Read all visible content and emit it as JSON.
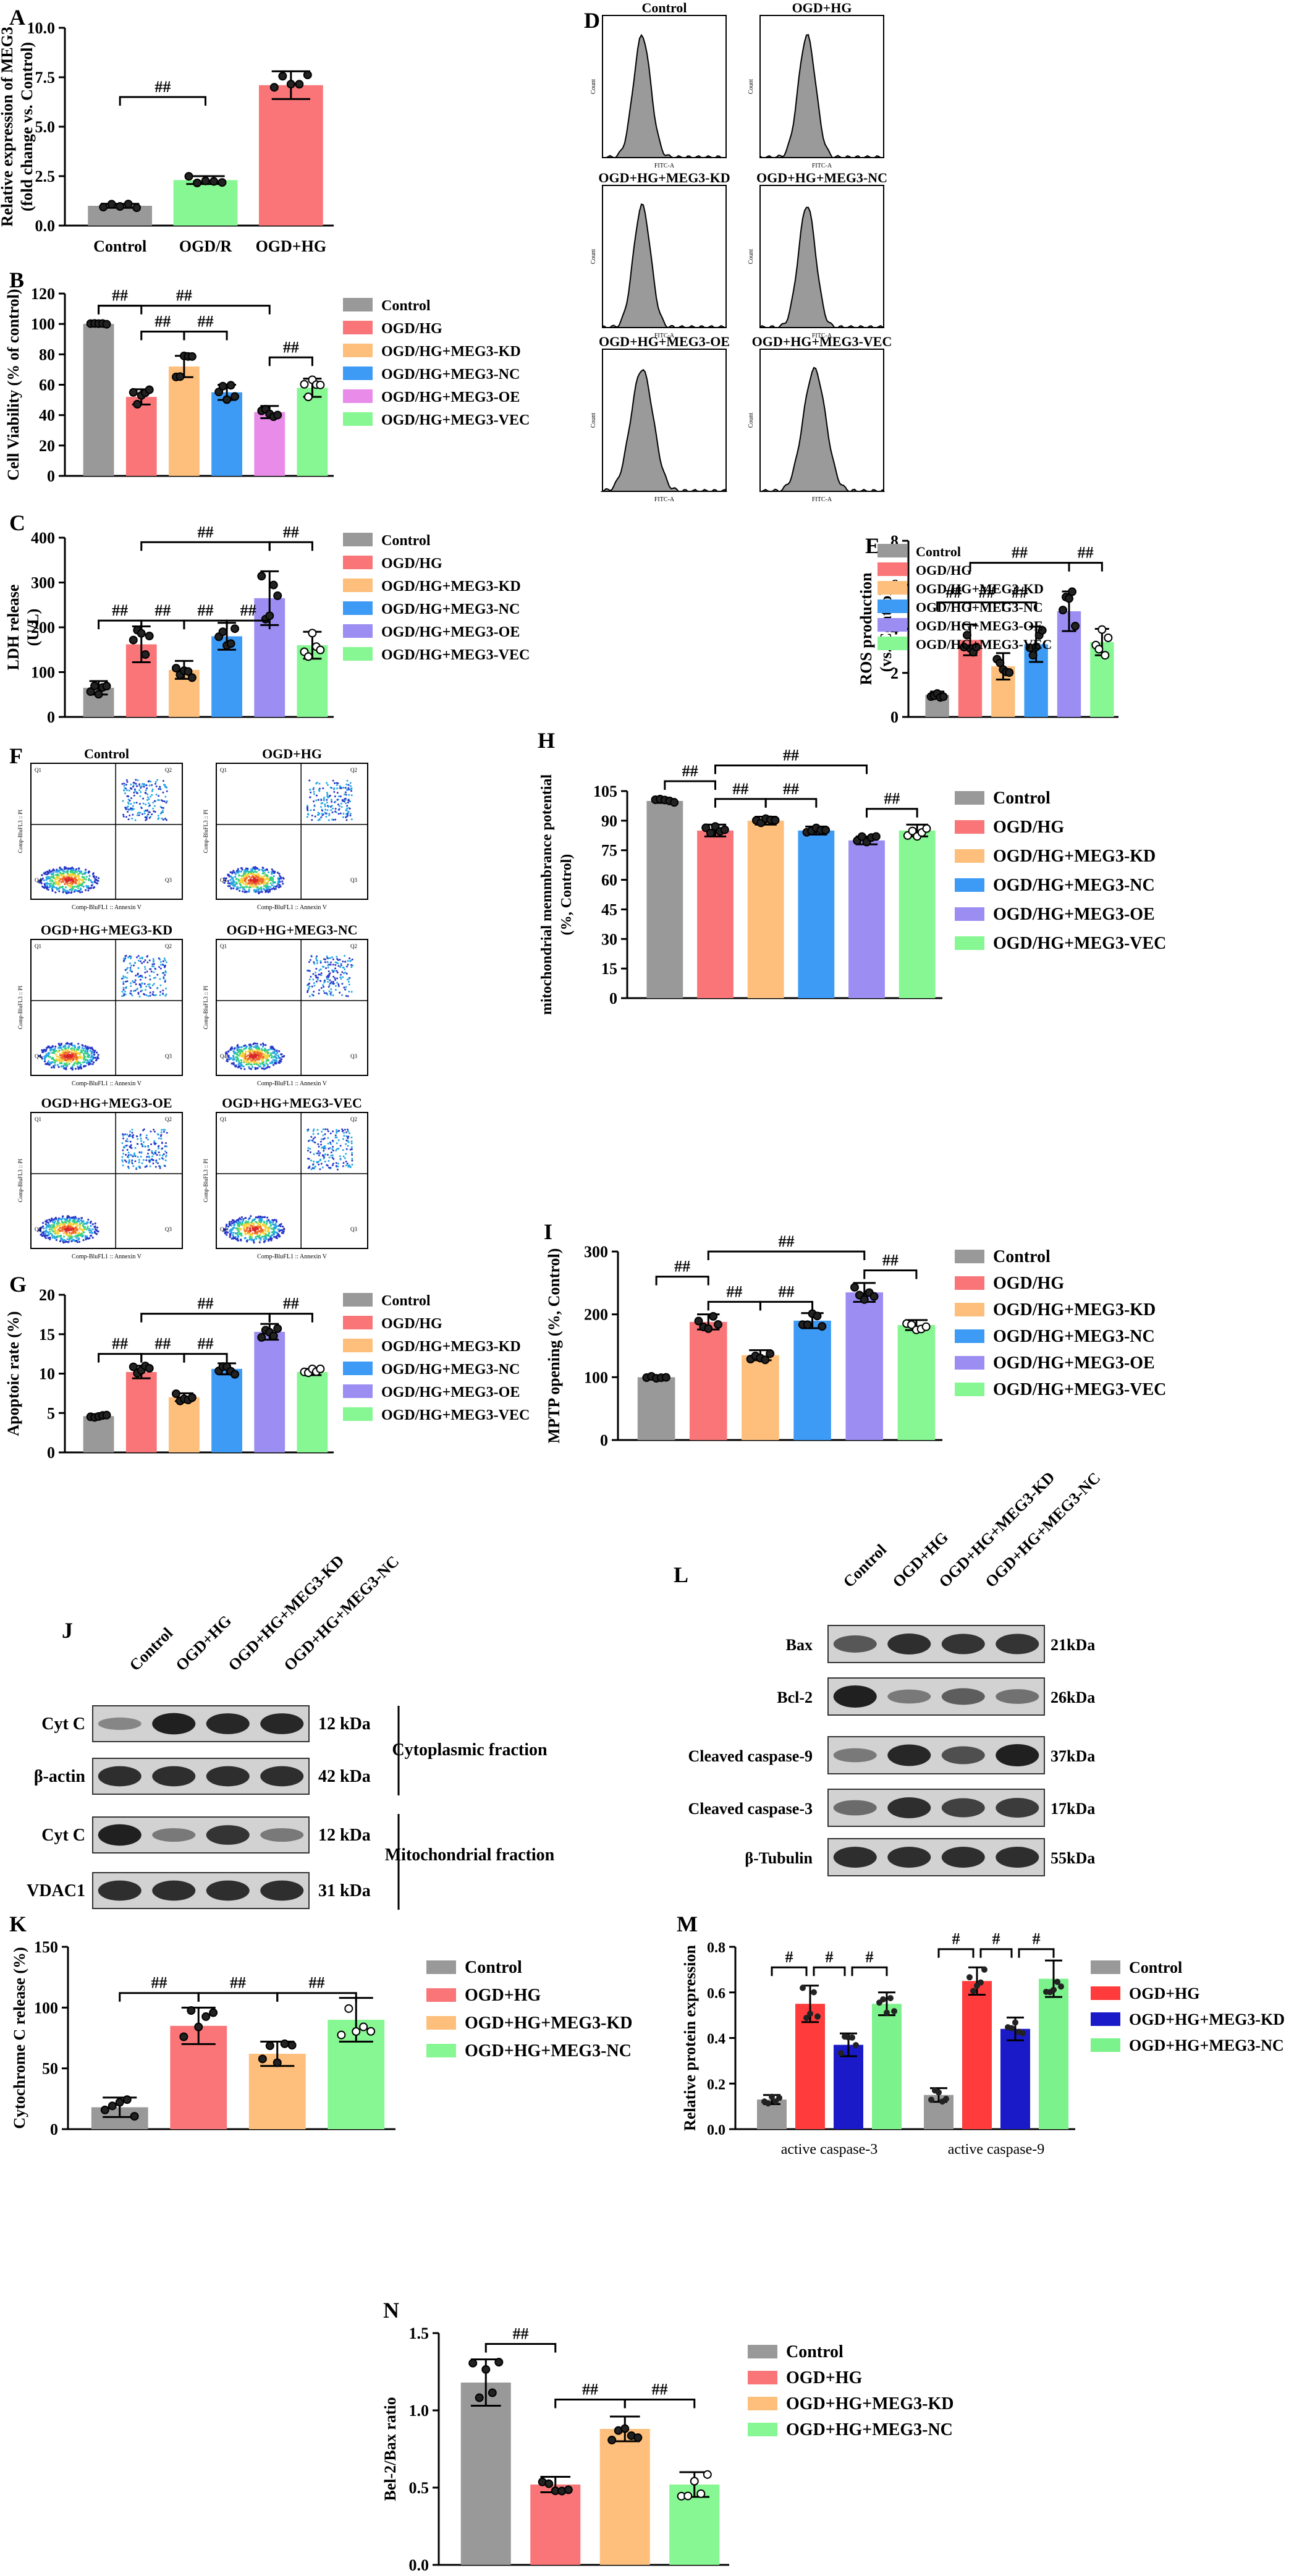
{
  "colors": {
    "gray": "#999999",
    "red": "#F97578",
    "orange": "#FDBF7B",
    "blue": "#3D9BF5",
    "purple": "#9B8DF2",
    "pink": "#E98BE8",
    "green": "#86F792",
    "red2": "#FF3B3B",
    "navy": "#1A1AC8",
    "lime": "#7CF28C"
  },
  "panels": {
    "A": {
      "letter": "A",
      "ylabel": [
        "Relative expression of MEG3",
        "(fold change vs. Control)"
      ],
      "ylim": [
        0,
        10
      ],
      "yticks": [
        "0.0",
        "2.5",
        "5.0",
        "7.5",
        "10.0"
      ],
      "categories": [
        "Control",
        "OGD/R",
        "OGD+HG"
      ],
      "values": [
        1.0,
        2.3,
        7.1
      ],
      "errors": [
        0.1,
        0.2,
        0.7
      ],
      "sig": [
        "##",
        "##"
      ],
      "colors": [
        "gray",
        "green",
        "red"
      ]
    },
    "B": {
      "letter": "B",
      "ylabel": [
        "Cell Viability (% of control)"
      ],
      "ylim": [
        0,
        120
      ],
      "yticks": [
        "0",
        "20",
        "40",
        "60",
        "80",
        "100",
        "120"
      ],
      "values": [
        100,
        52,
        72,
        55,
        42,
        58
      ],
      "errors": [
        0,
        5,
        7,
        5,
        4,
        6
      ],
      "sig": [
        "##",
        "##",
        "##",
        "##",
        "##"
      ],
      "colors": [
        "gray",
        "red",
        "orange",
        "blue",
        "pink",
        "green"
      ],
      "legend": [
        "Control",
        "OGD/HG",
        "OGD/HG+MEG3-KD",
        "OGD/HG+MEG3-NC",
        "OGD/HG+MEG3-OE",
        "OGD/HG+MEG3-VEC"
      ]
    },
    "C": {
      "letter": "C",
      "ylabel": [
        "LDH release",
        "(U/L)"
      ],
      "ylim": [
        0,
        400
      ],
      "yticks": [
        "0",
        "100",
        "200",
        "300",
        "400"
      ],
      "values": [
        65,
        162,
        105,
        180,
        265,
        160
      ],
      "errors": [
        15,
        40,
        20,
        30,
        60,
        30
      ],
      "sig": [
        "##",
        "##",
        "##",
        "##",
        "##",
        "##"
      ],
      "colors": [
        "gray",
        "red",
        "orange",
        "blue",
        "purple",
        "green"
      ],
      "legend": [
        "Control",
        "OGD/HG",
        "OGD/HG+MEG3-KD",
        "OGD/HG+MEG3-NC",
        "OGD/HG+MEG3-OE",
        "OGD/HG+MEG3-VEC"
      ]
    },
    "E": {
      "letter": "E",
      "ylabel": [
        "ROS production",
        "(vs. Control)"
      ],
      "ylim": [
        0,
        8
      ],
      "yticks": [
        "0",
        "2",
        "4",
        "6",
        "8"
      ],
      "values": [
        1.0,
        3.5,
        2.3,
        3.3,
        4.8,
        3.4
      ],
      "errors": [
        0.15,
        0.7,
        0.6,
        0.8,
        0.9,
        0.6
      ],
      "sig": [
        "##",
        "##",
        "##",
        "##",
        "##"
      ],
      "colors": [
        "gray",
        "red",
        "orange",
        "blue",
        "purple",
        "green"
      ],
      "legend": [
        "Control",
        "OGD/HG",
        "OGD/HG+MEG3-KD",
        "OGD/HG+MEG3-NC",
        "OGD/HG+MEG3-OE",
        "OGD/HG+MEG3-VEC"
      ]
    },
    "G": {
      "letter": "G",
      "ylabel": [
        "Apoptoic rate (%)"
      ],
      "ylim": [
        0,
        20
      ],
      "yticks": [
        "0",
        "5",
        "10",
        "15",
        "20"
      ],
      "values": [
        4.6,
        10.2,
        7.0,
        10.6,
        15.3,
        10.2
      ],
      "errors": [
        0.2,
        0.8,
        0.5,
        0.7,
        1.0,
        0.4
      ],
      "sig": [
        "##",
        "##",
        "##",
        "##",
        "##"
      ],
      "colors": [
        "gray",
        "red",
        "orange",
        "blue",
        "purple",
        "green"
      ],
      "legend": [
        "Control",
        "OGD/HG",
        "OGD/HG+MEG3-KD",
        "OGD/HG+MEG3-NC",
        "OGD/HG+MEG3-OE",
        "OGD/HG+MEG3-VEC"
      ]
    },
    "H": {
      "letter": "H",
      "ylabel": [
        "mitochondrial memmbrance potential",
        "(%, Control)"
      ],
      "ylim": [
        0,
        105
      ],
      "yticks": [
        "0",
        "15",
        "30",
        "45",
        "60",
        "75",
        "90",
        "105"
      ],
      "values": [
        100,
        85,
        90,
        85,
        80,
        85
      ],
      "errors": [
        1,
        3,
        2,
        2,
        2,
        3
      ],
      "sig": [
        "##",
        "##",
        "##",
        "##",
        "##"
      ],
      "colors": [
        "gray",
        "red",
        "orange",
        "blue",
        "purple",
        "green"
      ],
      "legend": [
        "Control",
        "OGD/HG",
        "OGD/HG+MEG3-KD",
        "OGD/HG+MEG3-NC",
        "OGD/HG+MEG3-OE",
        "OGD/HG+MEG3-VEC"
      ]
    },
    "I": {
      "letter": "I",
      "ylabel": [
        "MPTP opening (%, Control)"
      ],
      "ylim": [
        0,
        300
      ],
      "yticks": [
        "0",
        "100",
        "200",
        "300"
      ],
      "values": [
        100,
        188,
        135,
        190,
        235,
        183
      ],
      "errors": [
        2,
        12,
        8,
        12,
        15,
        8
      ],
      "sig": [
        "##",
        "##",
        "##",
        "##",
        "##"
      ],
      "colors": [
        "gray",
        "red",
        "orange",
        "blue",
        "purple",
        "green"
      ],
      "legend": [
        "Control",
        "OGD/HG",
        "OGD/HG+MEG3-KD",
        "OGD/HG+MEG3-NC",
        "OGD/HG+MEG3-OE",
        "OGD/HG+MEG3-VEC"
      ]
    },
    "K": {
      "letter": "K",
      "ylabel": [
        "Cytochrome C release (%)"
      ],
      "ylim": [
        0,
        150
      ],
      "yticks": [
        "0",
        "50",
        "100",
        "150"
      ],
      "values": [
        18,
        85,
        62,
        90
      ],
      "errors": [
        8,
        15,
        10,
        18
      ],
      "sig": [
        "##",
        "##",
        "##"
      ],
      "colors": [
        "gray",
        "red",
        "orange",
        "green"
      ],
      "legend": [
        "Control",
        "OGD+HG",
        "OGD+HG+MEG3-KD",
        "OGD+HG+MEG3-NC"
      ]
    },
    "M": {
      "letter": "M",
      "ylabel": [
        "Relative protein expression"
      ],
      "ylim": [
        0,
        0.8
      ],
      "yticks": [
        "0.0",
        "0.2",
        "0.4",
        "0.6",
        "0.8"
      ],
      "groups": [
        "active caspase-3",
        "active caspase-9"
      ],
      "series": [
        {
          "name": "Control",
          "values": [
            0.13,
            0.15
          ],
          "errors": [
            0.02,
            0.03
          ]
        },
        {
          "name": "OGD+HG",
          "values": [
            0.55,
            0.65
          ],
          "errors": [
            0.08,
            0.06
          ]
        },
        {
          "name": "OGD+HG+MEG3-KD",
          "values": [
            0.37,
            0.44
          ],
          "errors": [
            0.05,
            0.05
          ]
        },
        {
          "name": "OGD+HG+MEG3-NC",
          "values": [
            0.55,
            0.66
          ],
          "errors": [
            0.05,
            0.08
          ]
        }
      ],
      "sig": [
        "#",
        "#",
        "#",
        "#",
        "#",
        "#"
      ],
      "colors": [
        "gray",
        "red2",
        "navy",
        "lime"
      ]
    },
    "N": {
      "letter": "N",
      "ylabel": [
        "Bel-2/Bax ratio"
      ],
      "ylim": [
        0,
        1.5
      ],
      "yticks": [
        "0.0",
        "0.5",
        "1.0",
        "1.5"
      ],
      "values": [
        1.18,
        0.52,
        0.88,
        0.52
      ],
      "errors": [
        0.15,
        0.05,
        0.08,
        0.08
      ],
      "sig": [
        "##",
        "##",
        "##"
      ],
      "colors": [
        "gray",
        "red",
        "orange",
        "green"
      ],
      "legend": [
        "Control",
        "OGD+HG",
        "OGD+HG+MEG3-KD",
        "OGD+HG+MEG3-NC"
      ]
    }
  },
  "panelD": {
    "letter": "D",
    "titles": [
      "Control",
      "OGD+HG",
      "OGD+HG+MEG3-KD",
      "OGD+HG+MEG3-NC",
      "OGD+HG+MEG3-OE",
      "OGD+HG+MEG3-VEC"
    ],
    "xlabel": "FITC-A",
    "ylabel": "Count"
  },
  "panelF": {
    "letter": "F",
    "titles": [
      "Control",
      "OGD+HG",
      "OGD+HG+MEG3-KD",
      "OGD+HG+MEG3-NC",
      "OGD+HG+MEG3-OE",
      "OGD+HG+MEG3-VEC"
    ],
    "xlabel": "Comp-BluFL1 :: Annexin V",
    "ylabel": "Comp-BluFL3 :: PI",
    "quadrant_labels": [
      "Q1",
      "Q2",
      "Q3",
      "Q4"
    ]
  },
  "panelJ": {
    "letter": "J",
    "lanes": [
      "Control",
      "OGD+HG",
      "OGD+HG+MEG3-KD",
      "OGD+HG+MEG3-NC"
    ],
    "rows": [
      "Cyt C",
      "β-actin",
      "Cyt C",
      "VDAC1"
    ],
    "kda": [
      "12 kDa",
      "42 kDa",
      "12 kDa",
      "31 kDa"
    ],
    "fractions": [
      "Cytoplasmic fraction",
      "Mitochondrial fraction"
    ]
  },
  "panelL": {
    "letter": "L",
    "lanes": [
      "Control",
      "OGD+HG",
      "OGD+HG+MEG3-KD",
      "OGD+HG+MEG3-NC"
    ],
    "rows": [
      "Bax",
      "Bcl-2",
      "Cleaved caspase-9",
      "Cleaved caspase-3",
      "β-Tubulin"
    ],
    "kda": [
      "21kDa",
      "26kDa",
      "37kDa",
      "17kDa",
      "55kDa"
    ]
  }
}
